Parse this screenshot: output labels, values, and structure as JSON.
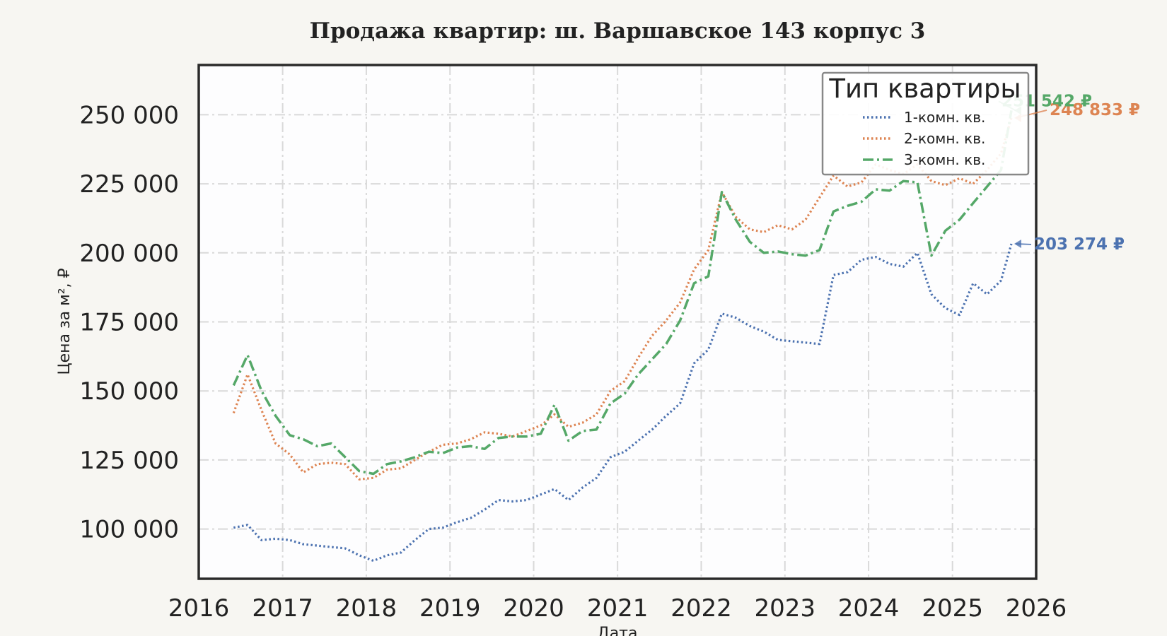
{
  "chart_data": {
    "type": "line",
    "title": "Продажа квартир: ш. Варшавское 143 корпус 3",
    "xlabel": "Дата",
    "ylabel": "Цена за м², ₽",
    "xlim": [
      "2016-01-01",
      "2026-01-01"
    ],
    "ylim": [
      82000,
      268000
    ],
    "x_ticks": [
      "2016",
      "2017",
      "2018",
      "2019",
      "2020",
      "2021",
      "2022",
      "2023",
      "2024",
      "2025",
      "2026"
    ],
    "y_ticks": [
      {
        "value": 100000,
        "label": "100 000"
      },
      {
        "value": 125000,
        "label": "125 000"
      },
      {
        "value": 150000,
        "label": "150 000"
      },
      {
        "value": 175000,
        "label": "175 000"
      },
      {
        "value": 200000,
        "label": "200 000"
      },
      {
        "value": 225000,
        "label": "225 000"
      },
      {
        "value": 250000,
        "label": "250 000"
      }
    ],
    "grid": true,
    "legend": {
      "title": "Тип квартиры",
      "position": "top-right"
    },
    "series": [
      {
        "name": "1-комн. кв.",
        "color": "#4c72b0",
        "style": "dotted",
        "end_label": "203 274 ₽",
        "points": [
          [
            "2016-06-01",
            100500
          ],
          [
            "2016-08-01",
            101500
          ],
          [
            "2016-10-01",
            96000
          ],
          [
            "2016-12-01",
            96500
          ],
          [
            "2017-02-01",
            96000
          ],
          [
            "2017-04-01",
            94500
          ],
          [
            "2017-06-01",
            94000
          ],
          [
            "2017-08-01",
            93500
          ],
          [
            "2017-10-01",
            93000
          ],
          [
            "2017-12-01",
            90500
          ],
          [
            "2018-02-01",
            88500
          ],
          [
            "2018-04-01",
            90500
          ],
          [
            "2018-06-01",
            91500
          ],
          [
            "2018-08-01",
            96000
          ],
          [
            "2018-10-01",
            100000
          ],
          [
            "2018-12-01",
            100500
          ],
          [
            "2019-02-01",
            102500
          ],
          [
            "2019-04-01",
            104000
          ],
          [
            "2019-06-01",
            107000
          ],
          [
            "2019-08-01",
            110500
          ],
          [
            "2019-10-01",
            110000
          ],
          [
            "2019-12-01",
            110500
          ],
          [
            "2020-02-01",
            112500
          ],
          [
            "2020-04-01",
            114500
          ],
          [
            "2020-06-01",
            110500
          ],
          [
            "2020-08-01",
            115000
          ],
          [
            "2020-10-01",
            118500
          ],
          [
            "2020-12-01",
            126000
          ],
          [
            "2021-02-01",
            128000
          ],
          [
            "2021-04-01",
            132000
          ],
          [
            "2021-06-01",
            136000
          ],
          [
            "2021-08-01",
            141000
          ],
          [
            "2021-10-01",
            145500
          ],
          [
            "2021-12-01",
            160000
          ],
          [
            "2022-02-01",
            165000
          ],
          [
            "2022-04-01",
            178000
          ],
          [
            "2022-06-01",
            176500
          ],
          [
            "2022-08-01",
            173500
          ],
          [
            "2022-10-01",
            171500
          ],
          [
            "2022-12-01",
            168500
          ],
          [
            "2023-02-01",
            168000
          ],
          [
            "2023-04-01",
            167500
          ],
          [
            "2023-06-01",
            167000
          ],
          [
            "2023-08-01",
            192000
          ],
          [
            "2023-10-01",
            193000
          ],
          [
            "2023-12-01",
            197500
          ],
          [
            "2024-02-01",
            198500
          ],
          [
            "2024-04-01",
            196000
          ],
          [
            "2024-06-01",
            195000
          ],
          [
            "2024-08-01",
            200000
          ],
          [
            "2024-10-01",
            185000
          ],
          [
            "2024-12-01",
            180000
          ],
          [
            "2025-02-01",
            177500
          ],
          [
            "2025-04-01",
            189000
          ],
          [
            "2025-06-01",
            185000
          ],
          [
            "2025-08-01",
            190000
          ],
          [
            "2025-09-15",
            203274
          ]
        ]
      },
      {
        "name": "2-комн. кв.",
        "color": "#dd8452",
        "style": "dotted",
        "end_label": "248 833 ₽",
        "points": [
          [
            "2016-06-01",
            142000
          ],
          [
            "2016-08-01",
            156000
          ],
          [
            "2016-10-01",
            143000
          ],
          [
            "2016-12-01",
            131000
          ],
          [
            "2017-02-01",
            127000
          ],
          [
            "2017-04-01",
            120500
          ],
          [
            "2017-06-01",
            123500
          ],
          [
            "2017-08-01",
            124000
          ],
          [
            "2017-10-01",
            123500
          ],
          [
            "2017-12-01",
            118000
          ],
          [
            "2018-02-01",
            118500
          ],
          [
            "2018-04-01",
            121500
          ],
          [
            "2018-06-01",
            122000
          ],
          [
            "2018-08-01",
            125000
          ],
          [
            "2018-10-01",
            128000
          ],
          [
            "2018-12-01",
            130500
          ],
          [
            "2019-02-01",
            131000
          ],
          [
            "2019-04-01",
            132500
          ],
          [
            "2019-06-01",
            135000
          ],
          [
            "2019-08-01",
            134500
          ],
          [
            "2019-10-01",
            133500
          ],
          [
            "2019-12-01",
            135500
          ],
          [
            "2020-02-01",
            137500
          ],
          [
            "2020-04-01",
            141500
          ],
          [
            "2020-06-01",
            137000
          ],
          [
            "2020-08-01",
            138500
          ],
          [
            "2020-10-01",
            141500
          ],
          [
            "2020-12-01",
            150000
          ],
          [
            "2021-02-01",
            153500
          ],
          [
            "2021-04-01",
            162000
          ],
          [
            "2021-06-01",
            170000
          ],
          [
            "2021-08-01",
            175500
          ],
          [
            "2021-10-01",
            182000
          ],
          [
            "2021-12-01",
            194000
          ],
          [
            "2022-02-01",
            201000
          ],
          [
            "2022-04-01",
            222000
          ],
          [
            "2022-06-01",
            213000
          ],
          [
            "2022-08-01",
            208500
          ],
          [
            "2022-10-01",
            207500
          ],
          [
            "2022-12-01",
            210000
          ],
          [
            "2023-02-01",
            208500
          ],
          [
            "2023-04-01",
            212000
          ],
          [
            "2023-06-01",
            220000
          ],
          [
            "2023-08-01",
            228000
          ],
          [
            "2023-10-01",
            224000
          ],
          [
            "2023-12-01",
            225500
          ],
          [
            "2024-02-01",
            232000
          ],
          [
            "2024-04-01",
            230000
          ],
          [
            "2024-06-01",
            228500
          ],
          [
            "2024-08-01",
            232000
          ],
          [
            "2024-10-01",
            226000
          ],
          [
            "2024-12-01",
            224500
          ],
          [
            "2025-02-01",
            227000
          ],
          [
            "2025-04-01",
            225000
          ],
          [
            "2025-06-01",
            230000
          ],
          [
            "2025-08-01",
            236000
          ],
          [
            "2025-09-15",
            248833
          ]
        ]
      },
      {
        "name": "3-комн. кв.",
        "color": "#55a868",
        "style": "dashdot",
        "end_label": "251 542 ₽",
        "points": [
          [
            "2016-06-01",
            152000
          ],
          [
            "2016-08-01",
            163000
          ],
          [
            "2016-10-01",
            150000
          ],
          [
            "2016-12-01",
            141000
          ],
          [
            "2017-02-01",
            134000
          ],
          [
            "2017-04-01",
            132500
          ],
          [
            "2017-06-01",
            130000
          ],
          [
            "2017-08-01",
            131000
          ],
          [
            "2017-10-01",
            126000
          ],
          [
            "2017-12-01",
            121000
          ],
          [
            "2018-02-01",
            120000
          ],
          [
            "2018-04-01",
            123500
          ],
          [
            "2018-06-01",
            124500
          ],
          [
            "2018-08-01",
            126000
          ],
          [
            "2018-10-01",
            128000
          ],
          [
            "2018-12-01",
            127500
          ],
          [
            "2019-02-01",
            129500
          ],
          [
            "2019-04-01",
            130000
          ],
          [
            "2019-06-01",
            129000
          ],
          [
            "2019-08-01",
            133000
          ],
          [
            "2019-10-01",
            133500
          ],
          [
            "2019-12-01",
            133500
          ],
          [
            "2020-02-01",
            134500
          ],
          [
            "2020-04-01",
            145000
          ],
          [
            "2020-06-01",
            132000
          ],
          [
            "2020-08-01",
            135500
          ],
          [
            "2020-10-01",
            136000
          ],
          [
            "2020-12-01",
            145500
          ],
          [
            "2021-02-01",
            149000
          ],
          [
            "2021-04-01",
            156000
          ],
          [
            "2021-06-01",
            161500
          ],
          [
            "2021-08-01",
            167000
          ],
          [
            "2021-10-01",
            175500
          ],
          [
            "2021-12-01",
            189000
          ],
          [
            "2022-02-01",
            191500
          ],
          [
            "2022-04-01",
            222000
          ],
          [
            "2022-06-01",
            212000
          ],
          [
            "2022-08-01",
            204000
          ],
          [
            "2022-10-01",
            200000
          ],
          [
            "2022-12-01",
            200500
          ],
          [
            "2023-02-01",
            199500
          ],
          [
            "2023-04-01",
            199000
          ],
          [
            "2023-06-01",
            201000
          ],
          [
            "2023-08-01",
            215000
          ],
          [
            "2023-10-01",
            217000
          ],
          [
            "2023-12-01",
            218500
          ],
          [
            "2024-02-01",
            223000
          ],
          [
            "2024-04-01",
            222500
          ],
          [
            "2024-06-01",
            226000
          ],
          [
            "2024-08-01",
            225500
          ],
          [
            "2024-10-01",
            199000
          ],
          [
            "2024-12-01",
            208000
          ],
          [
            "2025-02-01",
            212000
          ],
          [
            "2025-04-01",
            218000
          ],
          [
            "2025-06-01",
            224000
          ],
          [
            "2025-08-01",
            230000
          ],
          [
            "2025-09-15",
            251542
          ]
        ]
      }
    ]
  }
}
